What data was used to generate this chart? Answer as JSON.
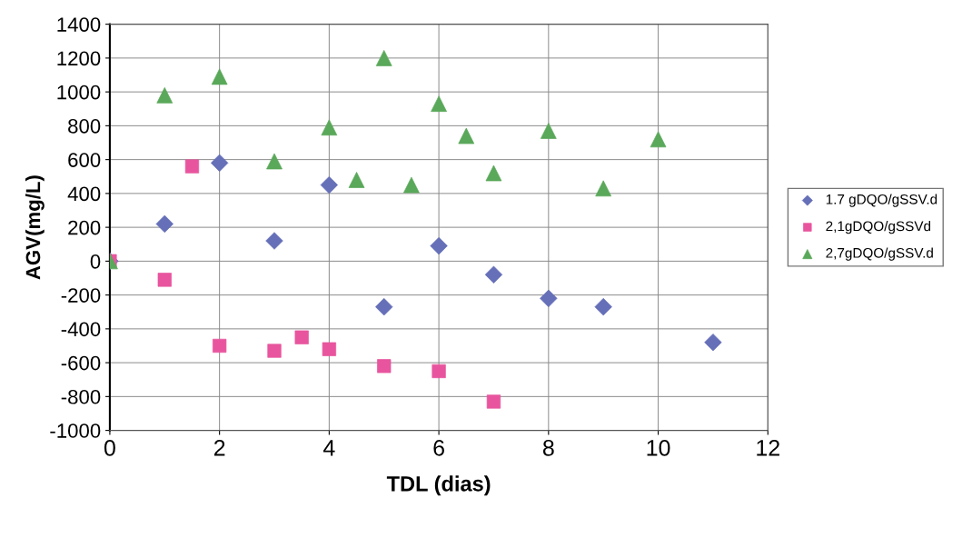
{
  "chart_data": {
    "type": "scatter",
    "xlabel": "TDL (dias)",
    "ylabel": "AGV(mg/L)",
    "xlim": [
      0,
      12
    ],
    "xticks": [
      0,
      2,
      4,
      6,
      8,
      10,
      12
    ],
    "ylim": [
      -1000,
      1400
    ],
    "yticks": [
      -1000,
      -800,
      -600,
      -400,
      -200,
      0,
      200,
      400,
      600,
      800,
      1000,
      1200,
      1400
    ],
    "grid": true,
    "legend": "right",
    "series": [
      {
        "name": "1.7 gDQO/gSSV.d",
        "color": "#6670b8",
        "marker": "diamond",
        "x": [
          0,
          1,
          2,
          3,
          4,
          5,
          6,
          7,
          8,
          9,
          11
        ],
        "values": [
          0,
          220,
          580,
          120,
          450,
          -270,
          90,
          -80,
          -220,
          -270,
          -480
        ]
      },
      {
        "name": "2,1gDQO/gSSVd",
        "color": "#e8559e",
        "marker": "square",
        "x": [
          0,
          1,
          1.5,
          2,
          3,
          3.5,
          4,
          5,
          6,
          7
        ],
        "values": [
          0,
          -110,
          560,
          -500,
          -530,
          -450,
          -520,
          -620,
          -650,
          -830
        ]
      },
      {
        "name": "2,7gDQO/gSSV.d",
        "color": "#5aa85a",
        "marker": "triangle",
        "x": [
          0,
          1,
          2,
          3,
          4,
          4.5,
          5,
          5.5,
          6,
          6.5,
          7,
          8,
          9,
          10
        ],
        "values": [
          0,
          980,
          1090,
          590,
          790,
          480,
          1200,
          450,
          930,
          740,
          520,
          770,
          430,
          720
        ]
      }
    ]
  }
}
